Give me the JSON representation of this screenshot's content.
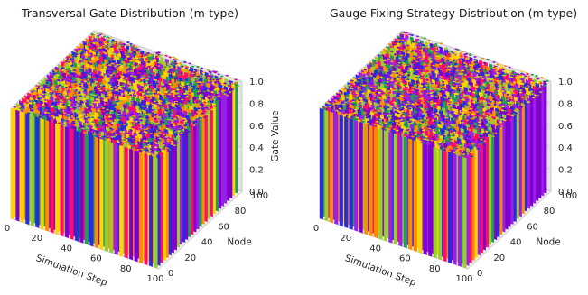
{
  "chart_data": [
    {
      "type": "bar3d",
      "title": "Transversal Gate Distribution (m-type)",
      "xlabel": "Simulation Step",
      "ylabel": "Node",
      "zlabel": "Gate Value",
      "xlim": [
        0,
        100
      ],
      "ylim": [
        0,
        100
      ],
      "zlim": [
        0,
        1
      ],
      "xticks": [
        "0",
        "20",
        "40",
        "60",
        "80",
        "100"
      ],
      "yticks": [
        "0",
        "20",
        "40",
        "60",
        "80",
        "100"
      ],
      "zticks": [
        "0.0",
        "0.2",
        "0.4",
        "0.6",
        "0.8",
        "1.0"
      ],
      "grid": true,
      "value_summary": "100 x 100 grid of vertical bars, each bar height approximately 1.0 (range 0.0 to 1.0), colored by category",
      "palette": [
        "#7f00cc",
        "#9b1fe8",
        "#ff0d6a",
        "#ffd400",
        "#1f9e58",
        "#ff8c00",
        "#9acd32",
        "#2a2adf"
      ]
    },
    {
      "type": "bar3d",
      "title": "Gauge Fixing Strategy Distribution (m-type)",
      "xlabel": "Simulation Step",
      "ylabel": "Node",
      "zlabel": "",
      "xlim": [
        0,
        100
      ],
      "ylim": [
        0,
        100
      ],
      "zlim": [
        0,
        1
      ],
      "xticks": [
        "0",
        "20",
        "40",
        "60",
        "80",
        "100"
      ],
      "yticks": [
        "0",
        "20",
        "40",
        "60",
        "80",
        "100"
      ],
      "zticks": [
        "0.0",
        "0.2",
        "0.4",
        "0.6",
        "0.8",
        "1.0"
      ],
      "grid": true,
      "value_summary": "100 x 100 grid of vertical bars, each bar height approximately 1.0 (range 0.0 to 1.0), colored by category",
      "palette": [
        "#7f00cc",
        "#9b1fe8",
        "#ff0d6a",
        "#ffd400",
        "#1f9e58",
        "#ff8c00",
        "#9acd32",
        "#2a2adf"
      ]
    }
  ]
}
